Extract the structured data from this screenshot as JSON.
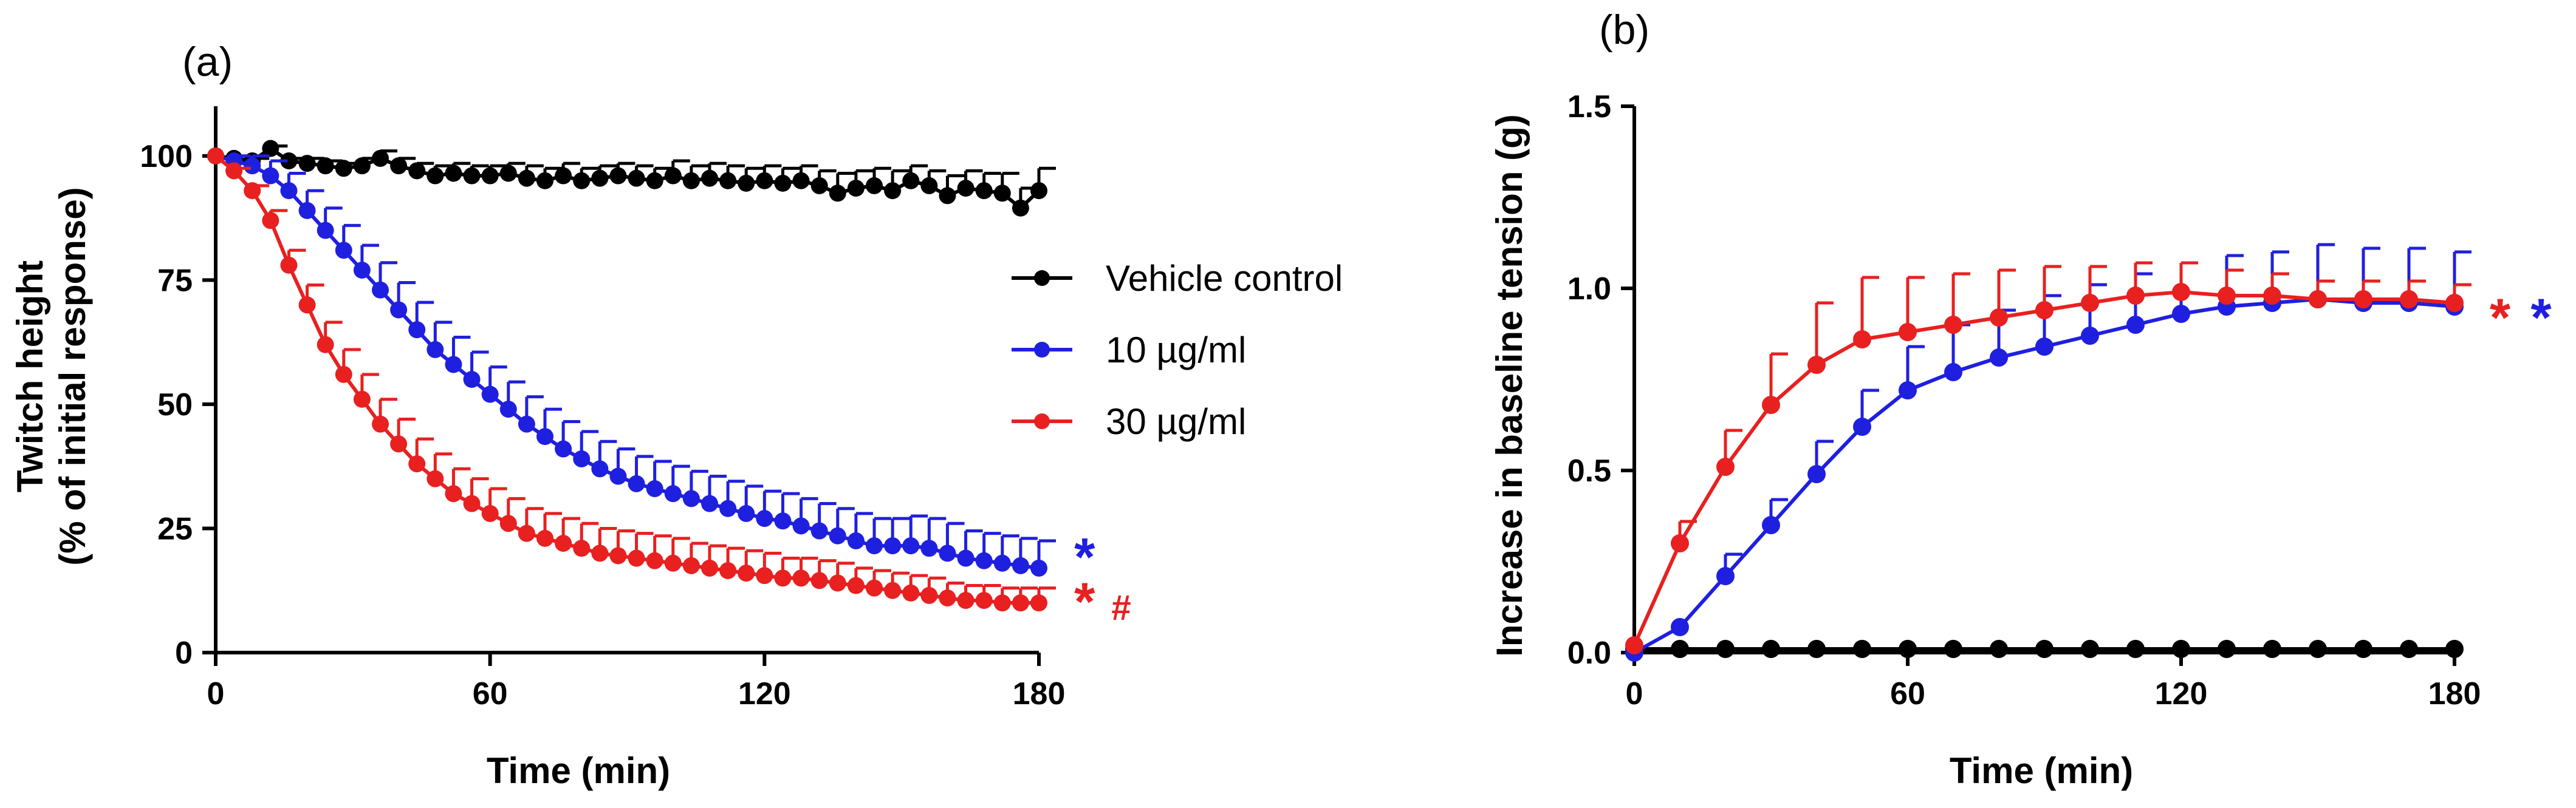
{
  "chart_data": [
    {
      "panel": "(a)",
      "type": "line",
      "xlabel": "Time (min)",
      "ylabel_line1": "Twitch height",
      "ylabel_line2": "(% of initial response)",
      "xlim": [
        0,
        180
      ],
      "ylim": [
        0,
        110
      ],
      "xticks": [
        0,
        60,
        120,
        180
      ],
      "yticks": [
        0,
        25,
        50,
        75,
        100
      ],
      "legend": {
        "placement": "center-right",
        "entries": [
          "Vehicle control",
          "10 µg/ml",
          "30 µg/ml"
        ]
      },
      "x": [
        0,
        4,
        8,
        12,
        16,
        20,
        24,
        28,
        32,
        36,
        40,
        44,
        48,
        52,
        56,
        60,
        64,
        68,
        72,
        76,
        80,
        84,
        88,
        92,
        96,
        100,
        104,
        108,
        112,
        116,
        120,
        124,
        128,
        132,
        136,
        140,
        144,
        148,
        152,
        156,
        160,
        164,
        168,
        172,
        176,
        180
      ],
      "series": [
        {
          "name": "Vehicle control",
          "color": "#000000",
          "values": [
            100,
            99.5,
            99,
            101.5,
            99,
            98.5,
            98,
            97.5,
            98,
            99.5,
            98,
            97,
            96,
            96.5,
            96,
            96,
            96.5,
            95.5,
            95,
            96,
            95,
            95.5,
            96,
            95.5,
            95,
            96,
            95,
            95.5,
            95,
            94.5,
            95,
            94.5,
            95,
            94,
            92.5,
            93.5,
            94,
            93,
            95,
            94,
            92,
            93.5,
            93,
            92.5,
            89.5,
            93
          ],
          "err": [
            0,
            0.5,
            0.5,
            0.5,
            0.5,
            1,
            1,
            1,
            1.5,
            1.5,
            1.5,
            1.5,
            2,
            2,
            2,
            2,
            2,
            2.5,
            2.5,
            2.5,
            2.5,
            2.5,
            2.5,
            2.5,
            2.5,
            3,
            3,
            3,
            3,
            3,
            3,
            3,
            3,
            3,
            4,
            3.5,
            3.5,
            4,
            3,
            3,
            4,
            3.5,
            3.5,
            4,
            4,
            4.5
          ]
        },
        {
          "name": "10 µg/ml",
          "color": "#1f1fe0",
          "values": [
            100,
            99,
            98,
            96,
            93,
            89,
            85,
            81,
            77,
            73,
            69,
            65,
            61,
            58,
            55,
            52,
            49,
            46,
            43.5,
            41,
            39,
            37,
            35.5,
            34,
            33,
            32,
            31,
            30,
            29,
            28,
            27,
            26.5,
            25.5,
            24.5,
            23.5,
            22.5,
            21.5,
            21.5,
            21.5,
            21,
            20,
            19,
            18.5,
            18,
            17.5,
            17
          ],
          "err": [
            0,
            1,
            2,
            3,
            3.5,
            4,
            4.5,
            5,
            5,
            5.5,
            5.5,
            5.5,
            5.5,
            5.5,
            5.5,
            5.5,
            5.5,
            5.5,
            5.5,
            5.5,
            5.5,
            5.5,
            5.5,
            5.5,
            5.5,
            5.5,
            5.5,
            5.5,
            5.5,
            5.5,
            5.5,
            5.5,
            5.5,
            5.5,
            5.5,
            5.5,
            5.5,
            5.5,
            6,
            6,
            6,
            5.5,
            5.5,
            5.5,
            5.5,
            5.5
          ]
        },
        {
          "name": "30 µg/ml",
          "color": "#e82020",
          "values": [
            100,
            97,
            93,
            87,
            78,
            70,
            62,
            56,
            51,
            46,
            42,
            38,
            35,
            32,
            30,
            28,
            26,
            24,
            23,
            22,
            21,
            20,
            19.5,
            19,
            18.5,
            18,
            17.5,
            17,
            16.5,
            16,
            15.5,
            15,
            15,
            14.5,
            14,
            13.5,
            13,
            12.5,
            12,
            11.5,
            11,
            10.5,
            10.5,
            10,
            10,
            10
          ],
          "err": [
            0,
            0.5,
            1,
            2,
            3,
            4,
            4.5,
            5,
            5,
            5,
            5,
            5,
            5,
            5,
            5,
            5,
            5,
            5,
            5,
            5,
            5,
            5,
            5,
            5,
            5,
            5,
            4.5,
            4.5,
            4.5,
            4.5,
            4.5,
            4,
            4,
            4,
            4,
            3.5,
            3.5,
            3.5,
            3.5,
            3.5,
            3,
            3,
            3,
            3,
            3,
            3
          ]
        }
      ],
      "annotations": [
        {
          "text": "*",
          "color": "#1f1fe0",
          "x": 190,
          "y": 20
        },
        {
          "text": "*",
          "color": "#e82020",
          "x": 190,
          "y": 11
        },
        {
          "text": "#",
          "color": "#e82020",
          "x": 198,
          "y": 11
        }
      ]
    },
    {
      "panel": "(b)",
      "type": "line",
      "xlabel": "Time (min)",
      "ylabel": "Increase in baseline tension (g)",
      "xlim": [
        0,
        180
      ],
      "ylim": [
        0,
        1.5
      ],
      "xticks": [
        0,
        60,
        120,
        180
      ],
      "yticks": [
        "0.0",
        "0.5",
        "1.0",
        "1.5"
      ],
      "x": [
        0,
        10,
        20,
        30,
        40,
        50,
        60,
        70,
        80,
        90,
        100,
        110,
        120,
        130,
        140,
        150,
        160,
        170,
        180
      ],
      "series": [
        {
          "name": "Vehicle control",
          "color": "#000000",
          "values": [
            0.01,
            0.01,
            0.01,
            0.01,
            0.01,
            0.01,
            0.01,
            0.01,
            0.01,
            0.01,
            0.01,
            0.01,
            0.01,
            0.01,
            0.01,
            0.01,
            0.01,
            0.01,
            0.01
          ],
          "err": [
            0,
            0,
            0,
            0,
            0,
            0,
            0,
            0,
            0,
            0,
            0,
            0,
            0,
            0,
            0,
            0,
            0,
            0,
            0
          ]
        },
        {
          "name": "10 µg/ml",
          "color": "#1f1fe0",
          "values": [
            0.0,
            0.07,
            0.21,
            0.35,
            0.49,
            0.62,
            0.72,
            0.77,
            0.81,
            0.84,
            0.87,
            0.9,
            0.93,
            0.95,
            0.96,
            0.97,
            0.96,
            0.96,
            0.95
          ],
          "err": [
            0,
            0,
            0.06,
            0.07,
            0.09,
            0.1,
            0.12,
            0.13,
            0.13,
            0.14,
            0.14,
            0.14,
            0.14,
            0.14,
            0.14,
            0.15,
            0.15,
            0.15,
            0.15
          ]
        },
        {
          "name": "30 µg/ml",
          "color": "#e82020",
          "values": [
            0.02,
            0.3,
            0.51,
            0.68,
            0.79,
            0.86,
            0.88,
            0.9,
            0.92,
            0.94,
            0.96,
            0.98,
            0.99,
            0.98,
            0.98,
            0.97,
            0.97,
            0.97,
            0.96
          ],
          "err": [
            0,
            0.06,
            0.1,
            0.14,
            0.17,
            0.17,
            0.15,
            0.14,
            0.13,
            0.12,
            0.1,
            0.09,
            0.08,
            0.07,
            0.06,
            0.05,
            0.05,
            0.05,
            0.05
          ]
        }
      ],
      "annotations": [
        {
          "text": "*",
          "color": "#e82020",
          "x": 190,
          "y": 0.93
        },
        {
          "text": "*",
          "color": "#1f1fe0",
          "x": 199,
          "y": 0.93
        }
      ]
    }
  ]
}
